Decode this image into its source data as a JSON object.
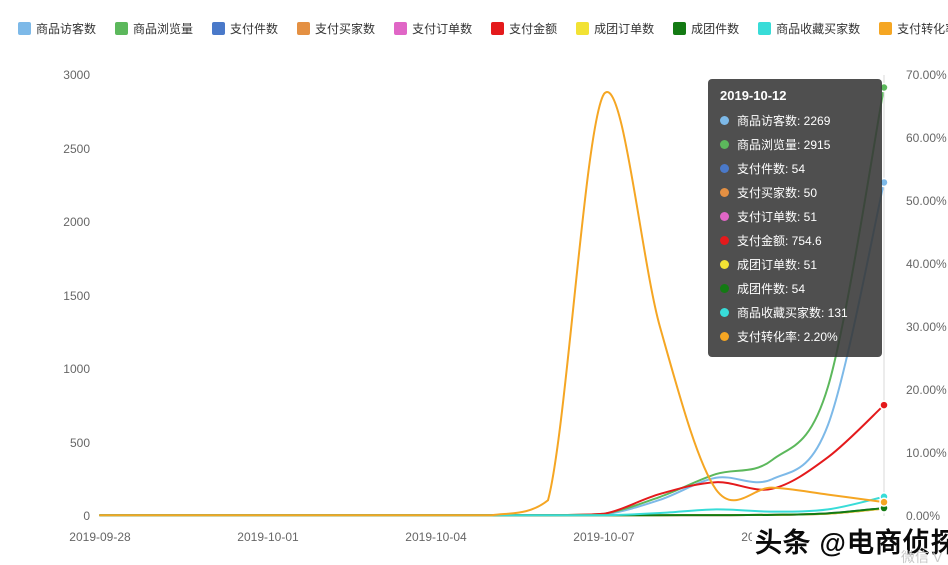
{
  "tooltip": {
    "title": "2019-10-12",
    "rows": [
      {
        "label": "商品访客数",
        "value": "2269"
      },
      {
        "label": "商品浏览量",
        "value": "2915"
      },
      {
        "label": "支付件数",
        "value": "54"
      },
      {
        "label": "支付买家数",
        "value": "50"
      },
      {
        "label": "支付订单数",
        "value": "51"
      },
      {
        "label": "支付金额",
        "value": "754.6"
      },
      {
        "label": "成团订单数",
        "value": "51"
      },
      {
        "label": "成团件数",
        "value": "54"
      },
      {
        "label": "商品收藏买家数",
        "value": "131"
      },
      {
        "label": "支付转化率",
        "value": "2.20%"
      }
    ]
  },
  "watermark": {
    "main": "头条 @电商侦探",
    "side": "微信 V"
  },
  "colors": {
    "hover_line": "#d9d9d9",
    "axis_text": "#666666",
    "tooltip_bg": "rgba(55,55,55,0.88)"
  },
  "chart_data": {
    "type": "line",
    "n_points": 15,
    "hover_index": 14,
    "hover_date": "2019-10-12",
    "x_tick_labels": [
      {
        "i": 0,
        "label": "2019-09-28"
      },
      {
        "i": 3,
        "label": "2019-10-01"
      },
      {
        "i": 6,
        "label": "2019-10-04"
      },
      {
        "i": 9,
        "label": "2019-10-07"
      },
      {
        "i": 12,
        "label": "2019-10-10"
      }
    ],
    "left_axis": {
      "max": 3000,
      "ticks": [
        0,
        500,
        1000,
        1500,
        2000,
        2500,
        3000
      ]
    },
    "right_axis": {
      "max": 70,
      "tick_labels": [
        "0.00%",
        "10.00%",
        "20.00%",
        "30.00%",
        "40.00%",
        "50.00%",
        "60.00%",
        "70.00%"
      ]
    },
    "series": [
      {
        "name": "商品访客数",
        "color": "#7db9e8",
        "axis": "left",
        "values": [
          2,
          2,
          2,
          2,
          2,
          2,
          2,
          2,
          3,
          10,
          110,
          260,
          250,
          620,
          2269
        ]
      },
      {
        "name": "商品浏览量",
        "color": "#5cb85c",
        "axis": "left",
        "values": [
          3,
          3,
          3,
          3,
          3,
          3,
          3,
          3,
          5,
          15,
          130,
          285,
          380,
          880,
          2915
        ]
      },
      {
        "name": "支付件数",
        "color": "#4a79c9",
        "axis": "left",
        "values": [
          0,
          0,
          0,
          0,
          0,
          0,
          0,
          0,
          0,
          1,
          3,
          6,
          8,
          18,
          54
        ]
      },
      {
        "name": "支付买家数",
        "color": "#e49043",
        "axis": "left",
        "values": [
          0,
          0,
          0,
          0,
          0,
          0,
          0,
          0,
          0,
          1,
          3,
          6,
          8,
          16,
          50
        ]
      },
      {
        "name": "支付订单数",
        "color": "#e066c6",
        "axis": "left",
        "values": [
          0,
          0,
          0,
          0,
          0,
          0,
          0,
          0,
          0,
          1,
          3,
          6,
          8,
          16,
          51
        ]
      },
      {
        "name": "支付金额",
        "color": "#e41a1c",
        "axis": "left",
        "values": [
          0,
          0,
          0,
          0,
          0,
          0,
          0,
          0,
          2,
          15,
          150,
          230,
          185,
          400,
          754.6
        ]
      },
      {
        "name": "成团订单数",
        "color": "#f2e234",
        "axis": "left",
        "values": [
          0,
          0,
          0,
          0,
          0,
          0,
          0,
          0,
          0,
          1,
          3,
          6,
          8,
          16,
          51
        ]
      },
      {
        "name": "成团件数",
        "color": "#137a13",
        "axis": "left",
        "values": [
          0,
          0,
          0,
          0,
          0,
          0,
          0,
          0,
          0,
          1,
          3,
          6,
          8,
          18,
          54
        ]
      },
      {
        "name": "商品收藏买家数",
        "color": "#38dcd8",
        "axis": "left",
        "values": [
          2,
          2,
          2,
          2,
          2,
          2,
          2,
          2,
          3,
          5,
          20,
          45,
          30,
          45,
          131
        ]
      },
      {
        "name": "支付转化率",
        "color": "#f5a623",
        "axis": "right",
        "values": [
          0,
          0,
          0,
          0,
          0,
          0,
          0,
          0,
          2.5,
          67,
          30,
          4.2,
          4.5,
          3.4,
          2.2
        ]
      }
    ]
  }
}
